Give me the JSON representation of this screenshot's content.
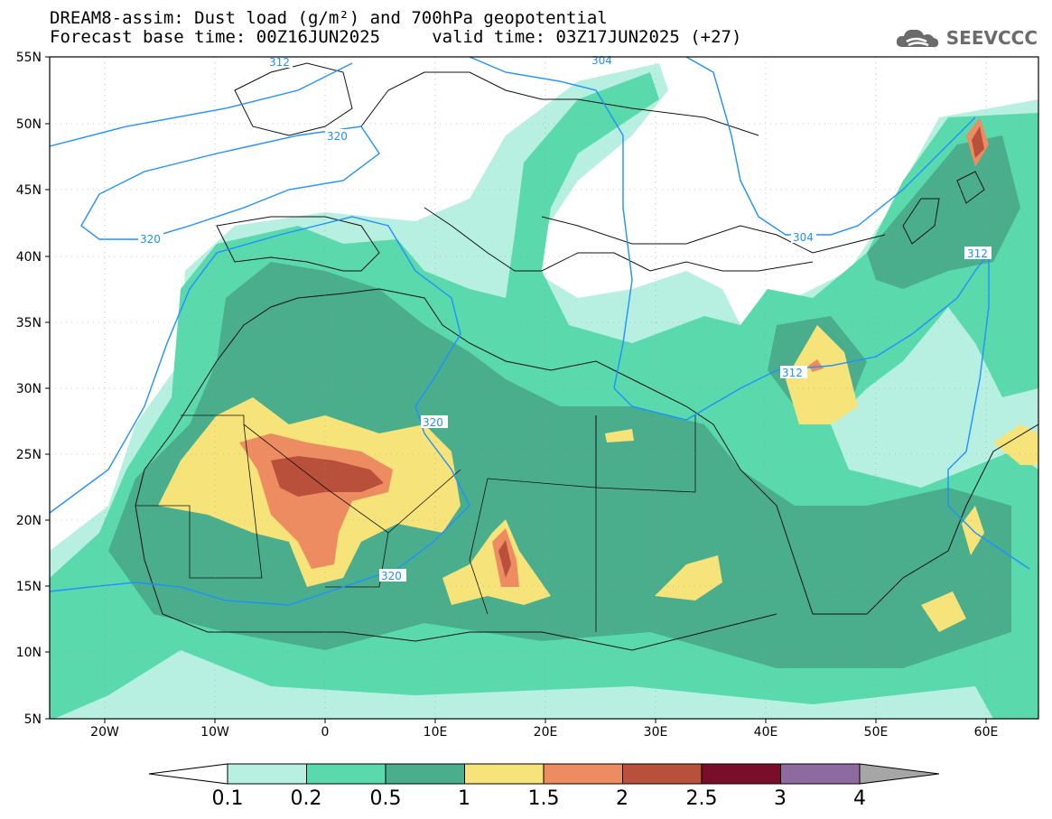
{
  "title": {
    "line1": "DREAM8-assim: Dust load (g/m²) and 700hPa geopotential",
    "line2": "Forecast base time: 00Z16JUN2025     valid time: 03Z17JUN2025 (+27)"
  },
  "logo": {
    "text": "SEEVCCC",
    "icon": "cloud-logo-icon"
  },
  "map": {
    "lat_labels": [
      "55N",
      "50N",
      "45N",
      "40N",
      "35N",
      "30N",
      "25N",
      "20N",
      "15N",
      "10N",
      "5N"
    ],
    "lon_labels": [
      "20W",
      "10W",
      "0",
      "10E",
      "20E",
      "30E",
      "40E",
      "50E",
      "60E"
    ],
    "contour_labels": [
      "312",
      "320",
      "304",
      "312",
      "320",
      "320",
      "320",
      "312",
      "304"
    ]
  },
  "colorbar": {
    "ticks": [
      "0.1",
      "0.2",
      "0.5",
      "1",
      "1.5",
      "2",
      "2.5",
      "3",
      "4"
    ],
    "colors": [
      "#b7efe1",
      "#5ad9ad",
      "#4aae8c",
      "#f6e37a",
      "#ed8c60",
      "#b8503c",
      "#780e2a",
      "#8d6ba1"
    ]
  },
  "palette": {
    "ocean": "#ffffff",
    "contour": "#1e90ff",
    "border": "#111111"
  }
}
